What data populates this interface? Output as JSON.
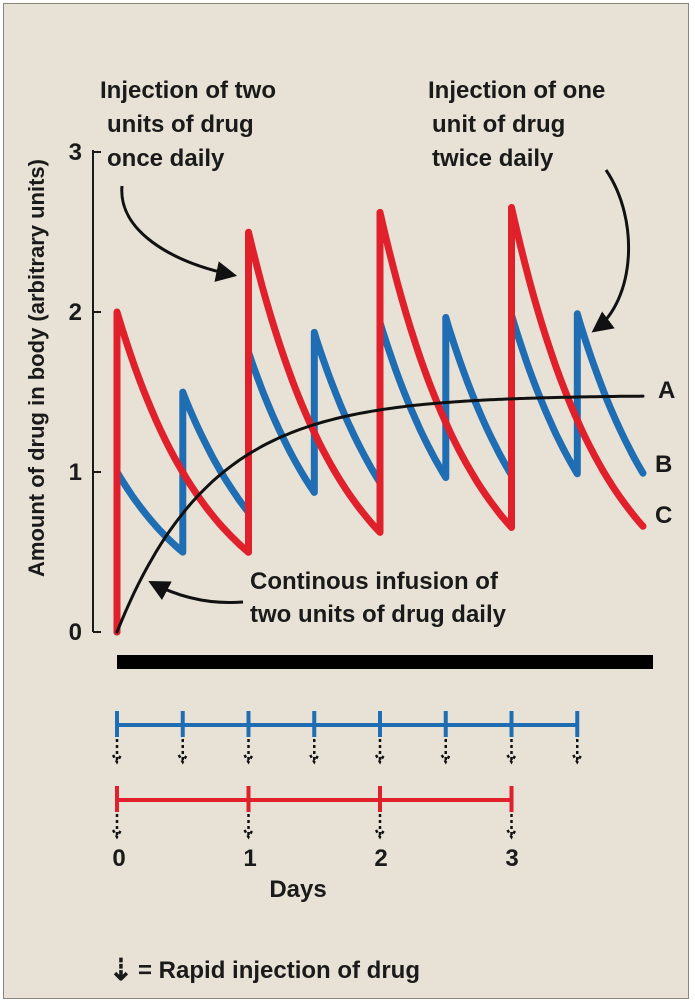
{
  "chart_data": {
    "type": "line",
    "ylabel": "Amount of drug in body (arbitrary units)",
    "xlabel": "Days",
    "ylim": [
      0,
      3
    ],
    "xlim": [
      0,
      4
    ],
    "yticks": [
      "0",
      "1",
      "2",
      "3"
    ],
    "xticks": [
      "0",
      "1",
      "2",
      "3"
    ],
    "series": [
      {
        "name": "A",
        "color": "#111111",
        "description": "Continous infusion of two units of drug daily",
        "curve": "infusion",
        "plateau": 1.48,
        "k": 1.39,
        "end": 4.0
      },
      {
        "name": "B",
        "color": "#1f6db3",
        "curve": "injection",
        "dose": 1.0,
        "interval": 0.5,
        "count": 8,
        "k": 1.39,
        "end": 4.0
      },
      {
        "name": "C",
        "color": "#e0202a",
        "curve": "injection",
        "dose": 2.0,
        "interval": 1.0,
        "count": 4,
        "k": 1.39,
        "end": 4.0
      }
    ],
    "annotations": {
      "once_daily": [
        "Injection of two",
        "units of drug",
        "once daily"
      ],
      "twice_daily": [
        "Injection of one",
        "unit of drug",
        "twice daily"
      ],
      "infusion": [
        "Continous infusion of",
        "two units of drug daily"
      ]
    },
    "schedules": {
      "infusion_bar": {
        "start": 0,
        "end": 4.0,
        "color": "#000000"
      },
      "twice_daily": {
        "times": [
          0,
          0.5,
          1,
          1.5,
          2,
          2.5,
          3,
          3.5
        ],
        "color": "#1f6db3"
      },
      "once_daily": {
        "times": [
          0,
          1,
          2,
          3
        ],
        "color": "#e0202a"
      }
    },
    "legend": {
      "symbol": "⇣",
      "text": "= Rapid injection of drug"
    }
  }
}
